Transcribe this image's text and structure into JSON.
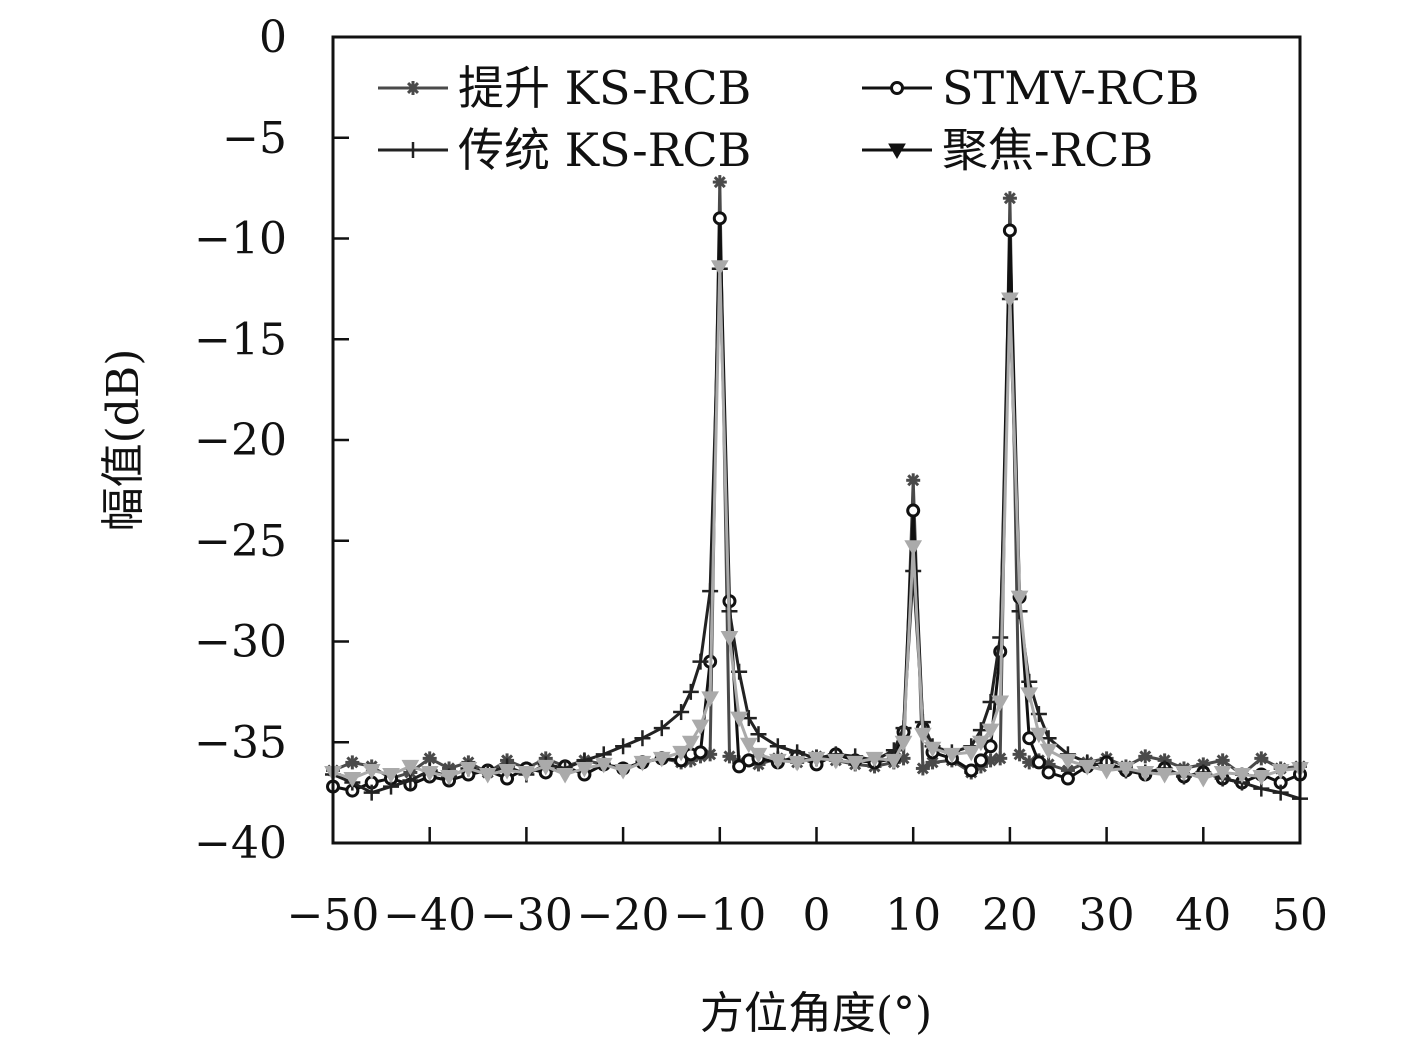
{
  "chart_data": {
    "type": "line",
    "title": "",
    "xlabel": "方位角度(°)",
    "ylabel": "幅值(dB)",
    "xlim": [
      -50,
      50
    ],
    "ylim": [
      -40,
      0
    ],
    "x_ticks": [
      "−50",
      "−40",
      "−30",
      "−20",
      "−10",
      "0",
      "10",
      "20",
      "30",
      "40",
      "50"
    ],
    "x_tick_values": [
      -50,
      -40,
      -30,
      -20,
      -10,
      0,
      10,
      20,
      30,
      40,
      50
    ],
    "y_ticks": [
      "0",
      "−5",
      "−10",
      "−15",
      "−20",
      "−25",
      "−30",
      "−35",
      "−40"
    ],
    "y_tick_values": [
      0,
      -5,
      -10,
      -15,
      -20,
      -25,
      -30,
      -35,
      -40
    ],
    "legend_position": "top",
    "x": [
      -50,
      -48,
      -46,
      -44,
      -42,
      -40,
      -38,
      -36,
      -34,
      -32,
      -30,
      -28,
      -26,
      -24,
      -22,
      -20,
      -18,
      -16,
      -14,
      -13,
      -12,
      -11,
      -10,
      -9,
      -8,
      -7,
      -6,
      -4,
      -2,
      0,
      2,
      4,
      6,
      8,
      9,
      10,
      11,
      12,
      14,
      16,
      17,
      18,
      19,
      20,
      21,
      22,
      23,
      24,
      26,
      28,
      30,
      32,
      34,
      36,
      38,
      40,
      42,
      44,
      46,
      48,
      50
    ],
    "series": [
      {
        "name": "提升 KS-RCB",
        "marker": "asterisk",
        "color": "#4a4a4a",
        "values": [
          -36.4,
          -36.0,
          -36.2,
          -36.8,
          -36.5,
          -35.8,
          -36.3,
          -36.0,
          -36.5,
          -35.9,
          -36.3,
          -35.8,
          -36.2,
          -35.9,
          -36.1,
          -36.3,
          -36.0,
          -35.8,
          -36.0,
          -35.9,
          -35.7,
          -35.6,
          -7.2,
          -35.7,
          -36.0,
          -35.9,
          -36.1,
          -35.8,
          -36.0,
          -35.7,
          -35.9,
          -36.1,
          -36.2,
          -36.0,
          -35.8,
          -22.0,
          -36.3,
          -36.0,
          -35.9,
          -36.5,
          -36.2,
          -35.9,
          -35.8,
          -8.0,
          -35.6,
          -36.0,
          -35.9,
          -36.1,
          -36.4,
          -36.0,
          -35.8,
          -36.2,
          -35.7,
          -35.9,
          -36.3,
          -36.1,
          -35.9,
          -36.6,
          -35.8,
          -36.3,
          -36.2
        ]
      },
      {
        "name": "STMV-RCB",
        "marker": "circle",
        "color": "#111111",
        "values": [
          -37.2,
          -37.4,
          -37.0,
          -36.8,
          -37.1,
          -36.7,
          -36.9,
          -36.6,
          -36.4,
          -36.8,
          -36.3,
          -36.5,
          -36.2,
          -36.6,
          -36.1,
          -36.3,
          -36.0,
          -35.8,
          -35.9,
          -35.6,
          -35.5,
          -31.0,
          -9.0,
          -28.0,
          -36.2,
          -35.9,
          -35.8,
          -36.0,
          -35.7,
          -36.1,
          -35.6,
          -35.9,
          -36.0,
          -35.8,
          -34.5,
          -23.5,
          -34.3,
          -35.5,
          -35.8,
          -36.4,
          -35.9,
          -35.2,
          -30.5,
          -9.6,
          -27.8,
          -34.8,
          -36.0,
          -36.5,
          -36.8,
          -36.2,
          -36.0,
          -36.4,
          -36.6,
          -36.3,
          -36.7,
          -36.5,
          -36.8,
          -37.0,
          -36.6,
          -37.0,
          -36.6
        ]
      },
      {
        "name": "传统 KS-RCB",
        "marker": "plus",
        "color": "#222222",
        "values": [
          -36.6,
          -37.0,
          -37.5,
          -37.2,
          -36.9,
          -36.4,
          -36.7,
          -36.3,
          -36.5,
          -36.2,
          -36.6,
          -36.1,
          -36.3,
          -35.9,
          -35.6,
          -35.2,
          -34.8,
          -34.3,
          -33.5,
          -32.5,
          -31.0,
          -27.5,
          -11.5,
          -28.5,
          -31.5,
          -33.8,
          -34.6,
          -35.2,
          -35.5,
          -35.8,
          -35.6,
          -35.7,
          -35.9,
          -35.4,
          -34.3,
          -26.5,
          -34.0,
          -35.2,
          -35.5,
          -35.2,
          -34.4,
          -33.0,
          -29.8,
          -13.0,
          -28.5,
          -32.0,
          -33.6,
          -34.8,
          -35.6,
          -36.0,
          -36.2,
          -36.4,
          -36.5,
          -36.3,
          -36.7,
          -36.5,
          -36.8,
          -37.0,
          -37.3,
          -37.5,
          -37.8
        ]
      },
      {
        "name": "聚焦-RCB",
        "marker": "triangle-down",
        "color": "#aaaaaa",
        "legend_color": "#111111",
        "values": [
          -36.5,
          -36.8,
          -36.4,
          -36.6,
          -36.2,
          -36.5,
          -36.7,
          -36.3,
          -36.6,
          -36.4,
          -36.5,
          -36.2,
          -36.6,
          -36.3,
          -36.1,
          -36.4,
          -36.0,
          -35.8,
          -35.5,
          -35.0,
          -34.2,
          -32.8,
          -11.4,
          -29.8,
          -33.8,
          -35.1,
          -35.6,
          -35.9,
          -36.0,
          -35.8,
          -35.9,
          -36.0,
          -35.8,
          -35.9,
          -35.0,
          -25.3,
          -34.6,
          -35.3,
          -35.6,
          -35.5,
          -35.0,
          -34.4,
          -33.0,
          -13.0,
          -27.8,
          -32.6,
          -34.6,
          -35.4,
          -35.9,
          -36.2,
          -36.4,
          -36.3,
          -36.5,
          -36.6,
          -36.5,
          -36.8,
          -36.5,
          -36.6,
          -36.7,
          -36.4,
          -36.3
        ]
      }
    ]
  }
}
